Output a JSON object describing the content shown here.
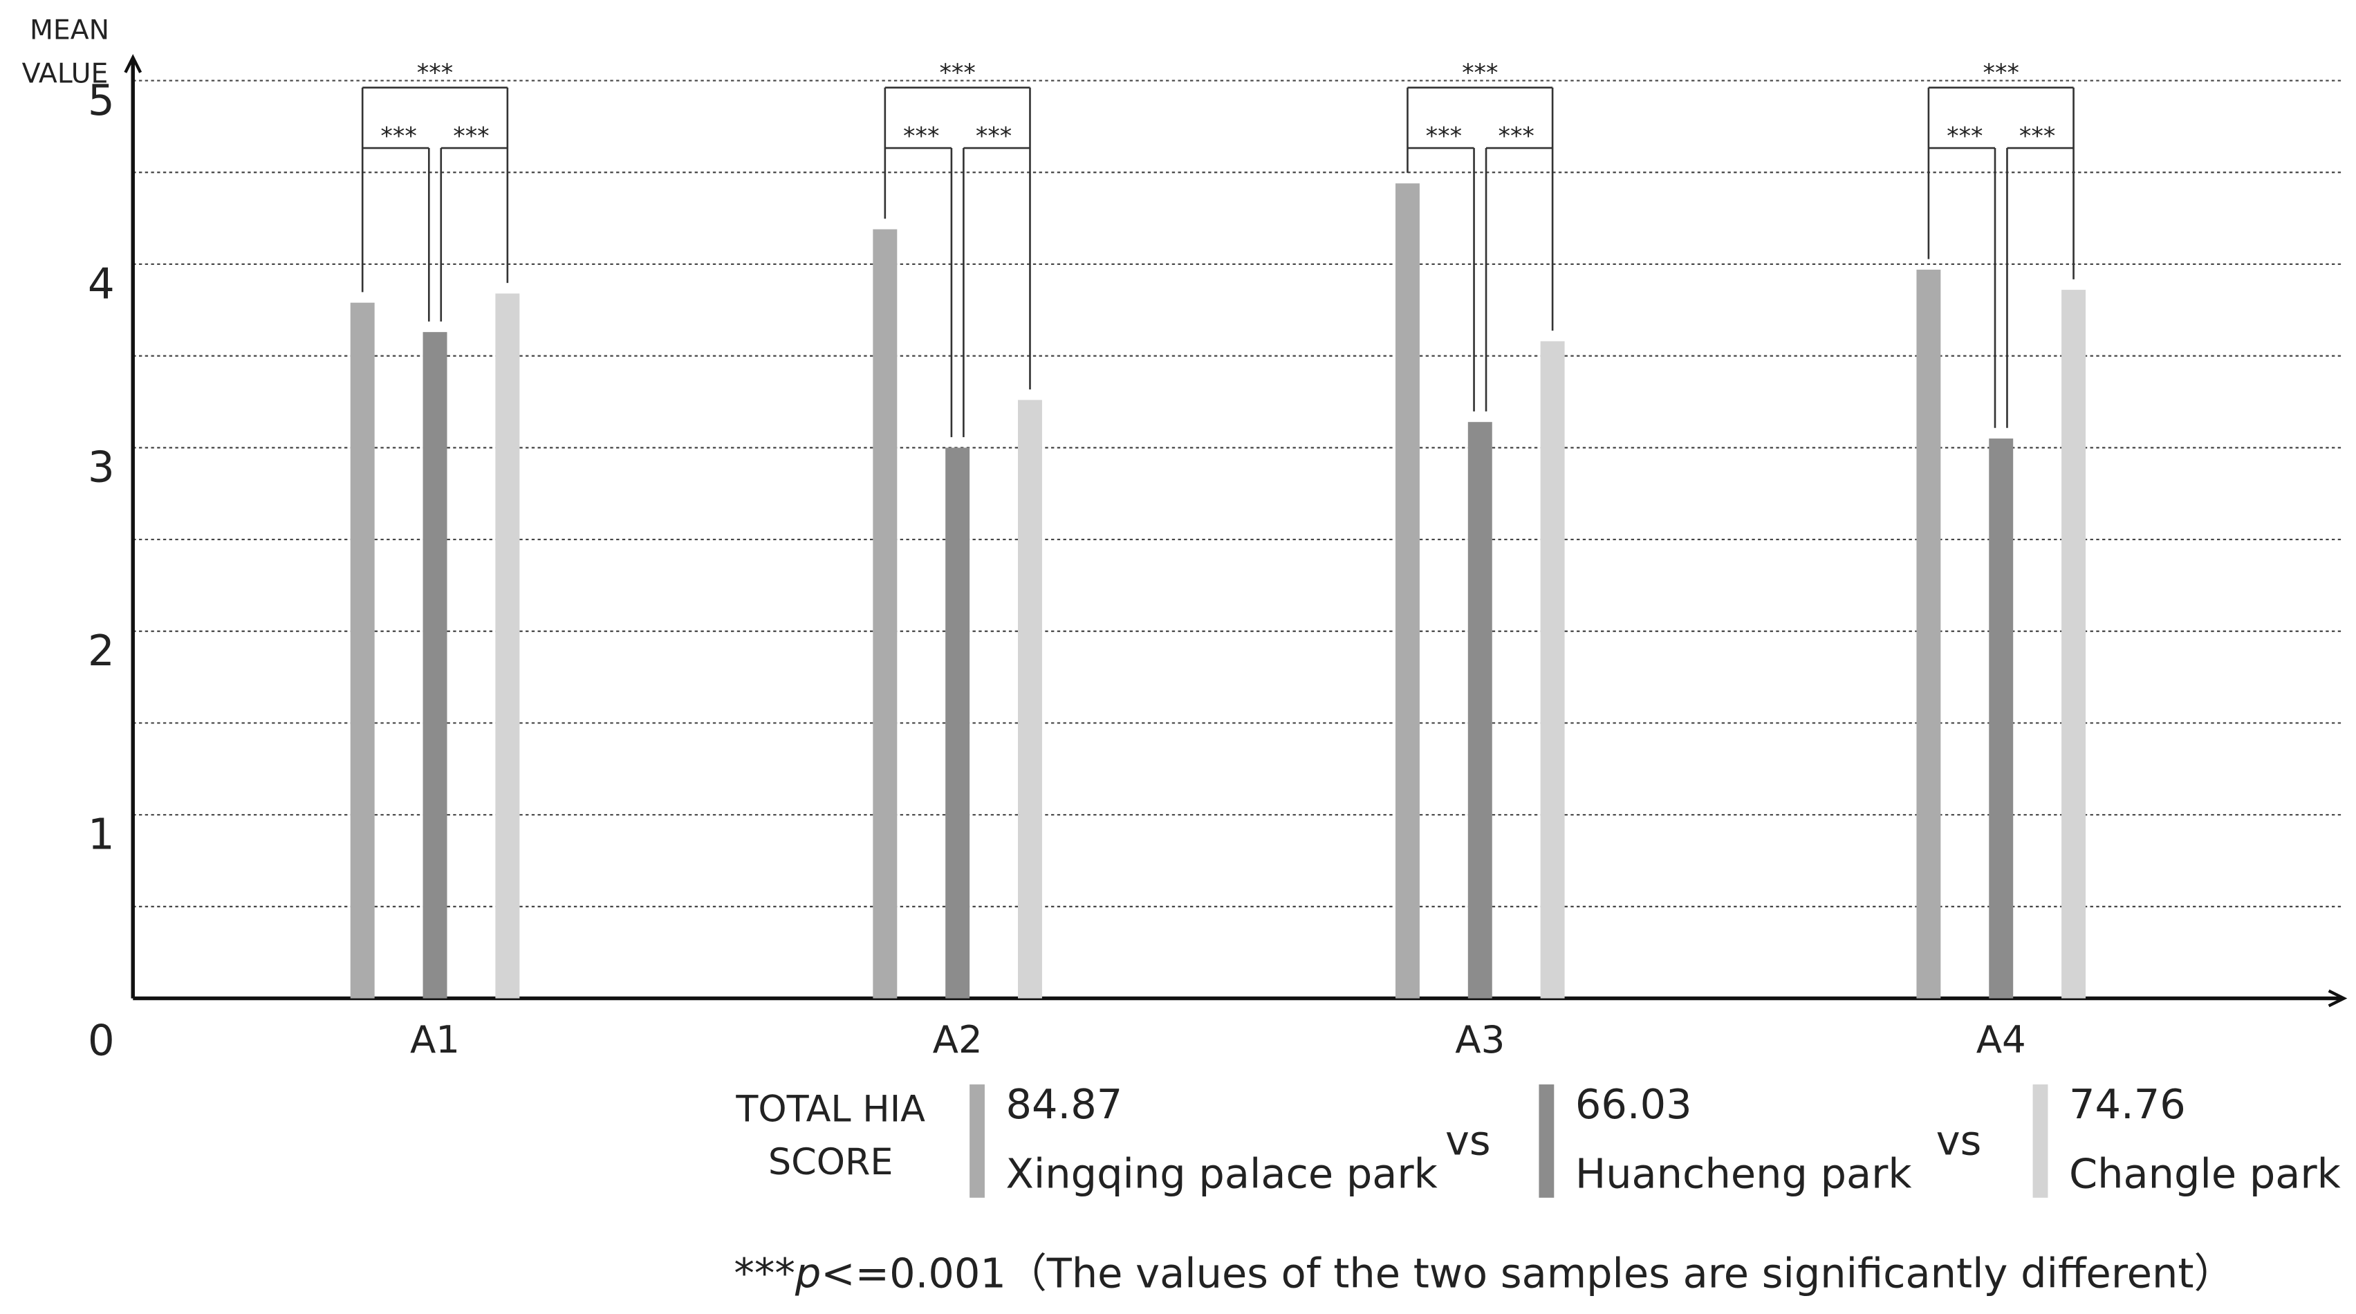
{
  "chart_data": {
    "type": "bar",
    "y_axis_label": [
      "MEAN",
      "VALUE"
    ],
    "categories": [
      "A1",
      "A2",
      "A3",
      "A4"
    ],
    "series": [
      {
        "name": "Xingqing palace park",
        "color": "#ababab",
        "score": 84.87,
        "values": [
          3.79,
          4.19,
          4.44,
          3.97
        ]
      },
      {
        "name": "Huancheng park",
        "color": "#8c8c8c",
        "score": 66.03,
        "values": [
          3.63,
          3.0,
          3.14,
          3.05
        ]
      },
      {
        "name": "Changle park",
        "color": "#d4d4d4",
        "score": 74.76,
        "values": [
          3.84,
          3.26,
          3.58,
          3.86
        ]
      }
    ],
    "ylim": [
      0,
      5.11
    ],
    "yticks": [
      0,
      1,
      2,
      3,
      4,
      5
    ],
    "grid_lines": [
      0.5,
      1,
      1.5,
      2,
      2.5,
      3,
      3.5,
      4,
      4.5,
      5
    ],
    "significance_label": "***",
    "legend_title": [
      "TOTAL HIA",
      "SCORE"
    ],
    "legend_separator": "vs",
    "footnote": [
      "***",
      "p",
      "<=0.001（The values of the two samples are significantly different）"
    ]
  }
}
